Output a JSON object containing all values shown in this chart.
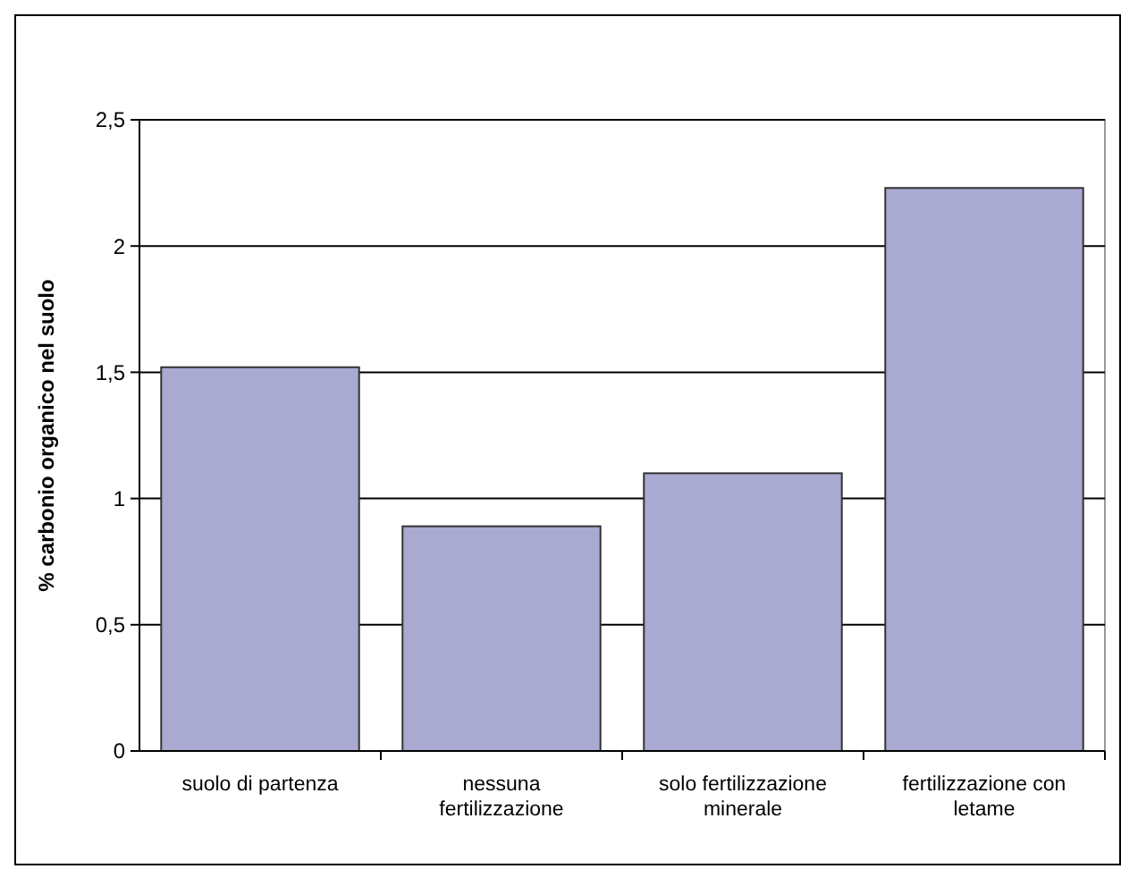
{
  "chart_data": {
    "type": "bar",
    "ylabel": "% carbonio organico nel suolo",
    "categories": [
      "suolo di partenza",
      "nessuna fertilizzazione",
      "solo fertilizzazione minerale",
      "fertilizzazione con letame"
    ],
    "values": [
      1.52,
      0.89,
      1.1,
      2.23
    ],
    "color": "#a9a9d1",
    "ylim": [
      0,
      2.5
    ],
    "yticks": [
      {
        "value": 0,
        "label": "0"
      },
      {
        "value": 0.5,
        "label": "0,5"
      },
      {
        "value": 1,
        "label": "1"
      },
      {
        "value": 1.5,
        "label": "1,5"
      },
      {
        "value": 2,
        "label": "2"
      },
      {
        "value": 2.5,
        "label": "2,5"
      }
    ],
    "grid": true
  }
}
